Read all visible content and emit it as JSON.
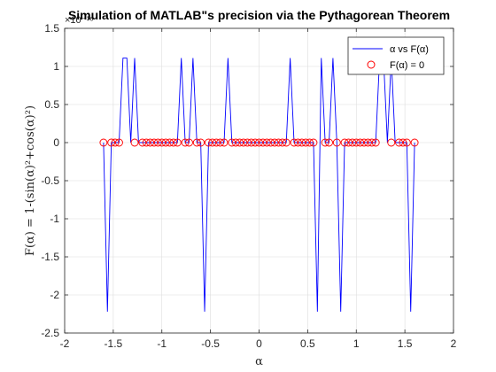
{
  "chart_data": {
    "type": "line",
    "title": "Simulation of MATLAB\"s precision via the Pythagorean Theorem",
    "xlabel": "α",
    "ylabel": "F(α) = 1-(sin(α)²+cos(α)²)",
    "y_exponent_label": "×10⁻¹⁶",
    "xlim": [
      -2,
      2
    ],
    "ylim": [
      -2.5,
      1.5
    ],
    "xticks": [
      -2,
      -1.5,
      -1,
      -0.5,
      0,
      0.5,
      1,
      1.5,
      2
    ],
    "xtick_labels": [
      "-2",
      "-1.5",
      "-1",
      "-0.5",
      "0",
      "0.5",
      "1",
      "1.5",
      "2"
    ],
    "yticks": [
      -2.5,
      -2,
      -1.5,
      -1,
      -0.5,
      0,
      0.5,
      1,
      1.5
    ],
    "ytick_labels": [
      "-2.5",
      "-2",
      "-1.5",
      "-1",
      "-0.5",
      "0",
      "0.5",
      "1",
      "1.5"
    ],
    "grid": true,
    "legend_position": "top-right",
    "series": [
      {
        "name": "α vs F(α)",
        "style": "line",
        "color": "#0000ff",
        "x": [
          -1.6,
          -1.56,
          -1.52,
          -1.48,
          -1.44,
          -1.4,
          -1.36,
          -1.32,
          -1.28,
          -1.24,
          -1.2,
          -1.16,
          -1.12,
          -1.08,
          -1.04,
          -1.0,
          -0.96,
          -0.92,
          -0.88,
          -0.84,
          -0.8,
          -0.76,
          -0.72,
          -0.68,
          -0.64,
          -0.6,
          -0.56,
          -0.52,
          -0.48,
          -0.44,
          -0.4,
          -0.36,
          -0.32,
          -0.28,
          -0.24,
          -0.2,
          -0.16,
          -0.12,
          -0.08,
          -0.04,
          0.0,
          0.04,
          0.08,
          0.12,
          0.16,
          0.2,
          0.24,
          0.28,
          0.32,
          0.36,
          0.4,
          0.44,
          0.48,
          0.52,
          0.56,
          0.6,
          0.64,
          0.68,
          0.72,
          0.76,
          0.8,
          0.84,
          0.88,
          0.92,
          0.96,
          1.0,
          1.04,
          1.08,
          1.12,
          1.16,
          1.2,
          1.24,
          1.28,
          1.32,
          1.36,
          1.4,
          1.44,
          1.48,
          1.52,
          1.56,
          1.6
        ],
        "y": [
          0,
          -2.22,
          0,
          0,
          0,
          1.11,
          1.11,
          0,
          1.11,
          0,
          0,
          0,
          0,
          0,
          0,
          0,
          0,
          0,
          0,
          0,
          1.11,
          0,
          0,
          1.11,
          0,
          0,
          -2.22,
          0,
          0,
          0,
          0,
          0,
          1.11,
          0,
          0,
          0,
          0,
          0,
          0,
          0,
          0,
          0,
          0,
          0,
          0,
          0,
          0,
          0,
          1.11,
          0,
          0,
          0,
          0,
          0,
          0,
          -2.22,
          1.11,
          0,
          0,
          1.11,
          0,
          -2.22,
          0,
          0,
          0,
          0,
          0,
          0,
          0,
          0,
          0,
          1.11,
          1.11,
          0,
          1.11,
          0,
          0,
          0,
          0,
          -2.22,
          0
        ]
      },
      {
        "name": "F(α) = 0",
        "style": "marker",
        "marker": "circle",
        "color": "#ff0000",
        "x": [
          -1.6,
          -1.52,
          -1.48,
          -1.44,
          -1.28,
          -1.2,
          -1.16,
          -1.12,
          -1.08,
          -1.04,
          -1.0,
          -0.96,
          -0.92,
          -0.88,
          -0.84,
          -0.76,
          -0.72,
          -0.64,
          -0.6,
          -0.52,
          -0.48,
          -0.44,
          -0.4,
          -0.36,
          -0.28,
          -0.24,
          -0.2,
          -0.16,
          -0.12,
          -0.08,
          -0.04,
          0.0,
          0.04,
          0.08,
          0.12,
          0.16,
          0.2,
          0.24,
          0.28,
          0.36,
          0.4,
          0.44,
          0.48,
          0.52,
          0.56,
          0.68,
          0.72,
          0.8,
          0.88,
          0.92,
          0.96,
          1.0,
          1.04,
          1.08,
          1.12,
          1.16,
          1.2,
          1.36,
          1.44,
          1.48,
          1.52,
          1.6
        ],
        "y": [
          0,
          0,
          0,
          0,
          0,
          0,
          0,
          0,
          0,
          0,
          0,
          0,
          0,
          0,
          0,
          0,
          0,
          0,
          0,
          0,
          0,
          0,
          0,
          0,
          0,
          0,
          0,
          0,
          0,
          0,
          0,
          0,
          0,
          0,
          0,
          0,
          0,
          0,
          0,
          0,
          0,
          0,
          0,
          0,
          0,
          0,
          0,
          0,
          0,
          0,
          0,
          0,
          0,
          0,
          0,
          0,
          0,
          0,
          0,
          0,
          0,
          0
        ]
      }
    ]
  }
}
